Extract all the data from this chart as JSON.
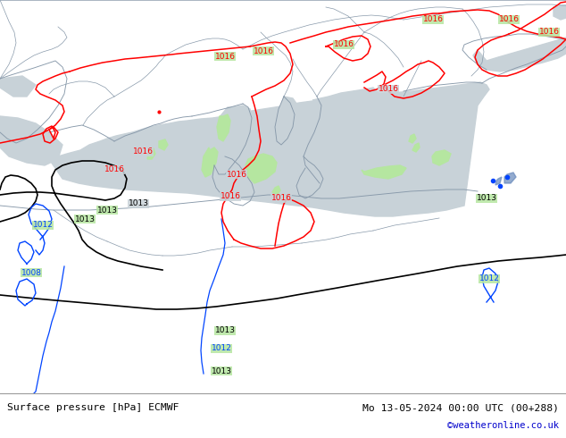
{
  "title_left": "Surface pressure [hPa] ECMWF",
  "title_right": "Mo 13-05-2024 00:00 UTC (00+288)",
  "credit": "©weatheronline.co.uk",
  "land_color": "#b5e6a0",
  "sea_color": "#c8d2d8",
  "fig_bg": "#ffffff",
  "border_color": "#8899aa",
  "red_iso": "#ff0000",
  "black_iso": "#000000",
  "blue_iso": "#0044ff",
  "blue_label": "#0044ff",
  "credit_color": "#0000cc",
  "fig_w": 6.34,
  "fig_h": 4.9,
  "dpi": 100
}
